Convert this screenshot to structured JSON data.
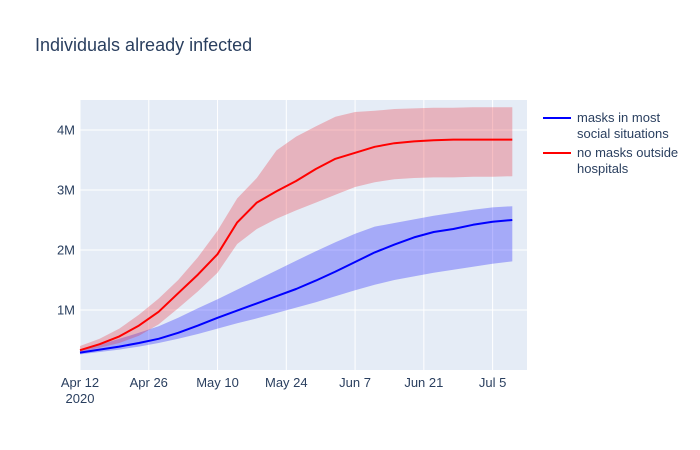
{
  "chart_data": {
    "type": "line",
    "title": "Individuals already infected",
    "xlabel": "",
    "ylabel": "",
    "x_range": [
      "2020-04-12",
      "2020-07-12"
    ],
    "ylim": [
      0,
      4500000
    ],
    "x_ticks": [
      {
        "date": "2020-04-12",
        "label": "Apr 12",
        "sublabel": "2020"
      },
      {
        "date": "2020-04-26",
        "label": "Apr 26",
        "sublabel": ""
      },
      {
        "date": "2020-05-10",
        "label": "May 10",
        "sublabel": ""
      },
      {
        "date": "2020-05-24",
        "label": "May 24",
        "sublabel": ""
      },
      {
        "date": "2020-06-07",
        "label": "Jun 7",
        "sublabel": ""
      },
      {
        "date": "2020-06-21",
        "label": "Jun 21",
        "sublabel": ""
      },
      {
        "date": "2020-07-05",
        "label": "Jul 5",
        "sublabel": ""
      }
    ],
    "y_ticks": [
      {
        "value": 1000000,
        "label": "1M"
      },
      {
        "value": 2000000,
        "label": "2M"
      },
      {
        "value": 3000000,
        "label": "3M"
      },
      {
        "value": 4000000,
        "label": "4M"
      }
    ],
    "grid": true,
    "legend_position": "top-right",
    "series": [
      {
        "name": "masks in most social situations",
        "legend_lines": [
          "masks in most",
          "social situations"
        ],
        "color": "#0000ff",
        "band_color": "#0000ff",
        "band_opacity": 0.28,
        "x": [
          "2020-04-12",
          "2020-04-16",
          "2020-04-20",
          "2020-04-24",
          "2020-04-28",
          "2020-05-02",
          "2020-05-06",
          "2020-05-10",
          "2020-05-14",
          "2020-05-18",
          "2020-05-22",
          "2020-05-26",
          "2020-05-30",
          "2020-06-03",
          "2020-06-07",
          "2020-06-11",
          "2020-06-15",
          "2020-06-19",
          "2020-06-23",
          "2020-06-27",
          "2020-07-01",
          "2020-07-05",
          "2020-07-09"
        ],
        "values": [
          290000,
          340000,
          390000,
          450000,
          520000,
          620000,
          740000,
          870000,
          990000,
          1110000,
          1230000,
          1350000,
          1490000,
          1640000,
          1800000,
          1960000,
          2090000,
          2210000,
          2300000,
          2350000,
          2420000,
          2470000,
          2500000
        ],
        "upper": [
          340000,
          420000,
          520000,
          620000,
          730000,
          870000,
          1030000,
          1180000,
          1340000,
          1500000,
          1660000,
          1820000,
          1980000,
          2130000,
          2270000,
          2390000,
          2450000,
          2510000,
          2570000,
          2620000,
          2670000,
          2710000,
          2730000
        ],
        "lower": [
          260000,
          300000,
          340000,
          390000,
          450000,
          520000,
          600000,
          690000,
          780000,
          860000,
          950000,
          1040000,
          1130000,
          1230000,
          1330000,
          1420000,
          1500000,
          1560000,
          1620000,
          1670000,
          1720000,
          1770000,
          1810000
        ]
      },
      {
        "name": "no masks outside hospitals",
        "legend_lines": [
          "no masks outside",
          "hospitals"
        ],
        "color": "#ff0000",
        "band_color": "#e8303a",
        "band_opacity": 0.3,
        "x": [
          "2020-04-12",
          "2020-04-16",
          "2020-04-20",
          "2020-04-24",
          "2020-04-28",
          "2020-05-02",
          "2020-05-06",
          "2020-05-10",
          "2020-05-14",
          "2020-05-18",
          "2020-05-22",
          "2020-05-26",
          "2020-05-30",
          "2020-06-03",
          "2020-06-07",
          "2020-06-11",
          "2020-06-15",
          "2020-06-19",
          "2020-06-23",
          "2020-06-27",
          "2020-07-01",
          "2020-07-05",
          "2020-07-09"
        ],
        "values": [
          330000,
          430000,
          560000,
          740000,
          970000,
          1280000,
          1590000,
          1930000,
          2460000,
          2790000,
          2980000,
          3150000,
          3350000,
          3520000,
          3620000,
          3720000,
          3780000,
          3810000,
          3830000,
          3840000,
          3840000,
          3840000,
          3840000
        ],
        "upper": [
          400000,
          520000,
          690000,
          920000,
          1190000,
          1500000,
          1880000,
          2320000,
          2860000,
          3200000,
          3660000,
          3890000,
          4060000,
          4220000,
          4300000,
          4320000,
          4350000,
          4360000,
          4370000,
          4370000,
          4380000,
          4380000,
          4380000
        ],
        "lower": [
          300000,
          370000,
          450000,
          570000,
          760000,
          1030000,
          1310000,
          1620000,
          2100000,
          2350000,
          2520000,
          2660000,
          2790000,
          2920000,
          3050000,
          3130000,
          3180000,
          3200000,
          3210000,
          3210000,
          3220000,
          3220000,
          3230000
        ]
      }
    ]
  }
}
